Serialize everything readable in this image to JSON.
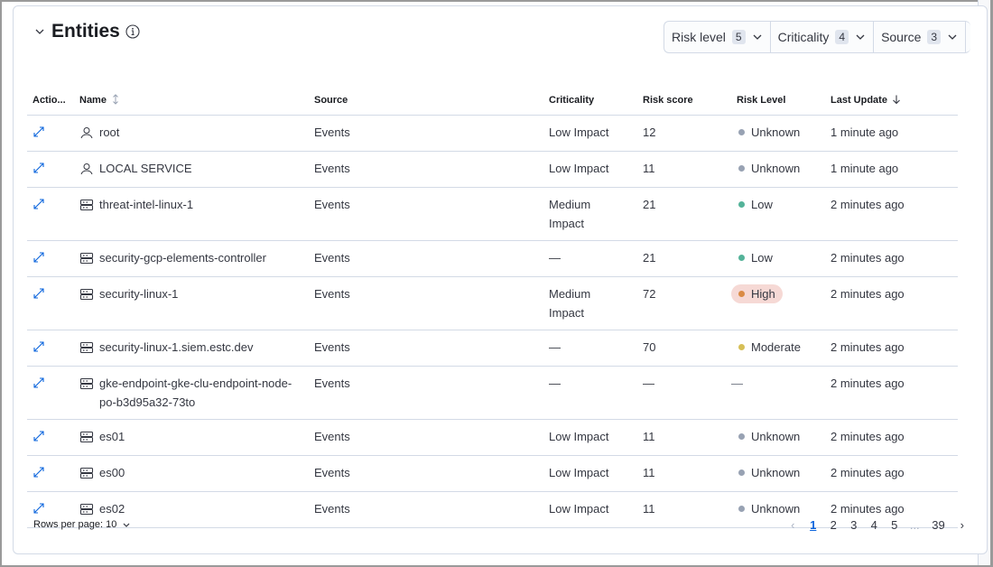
{
  "panel": {
    "title": "Entities"
  },
  "filters": [
    {
      "label": "Risk level",
      "count": "5"
    },
    {
      "label": "Criticality",
      "count": "4"
    },
    {
      "label": "Source",
      "count": "3"
    }
  ],
  "columns": [
    "Actio...",
    "Name",
    "Source",
    "Criticality",
    "Risk score",
    "Risk Level",
    "Last Update"
  ],
  "rows": [
    {
      "icon": "user",
      "name": "root",
      "source": "Events",
      "criticality": "Low Impact",
      "score": "12",
      "level": "Unknown",
      "updated": "1 minute ago"
    },
    {
      "icon": "user",
      "name": "LOCAL SERVICE",
      "source": "Events",
      "criticality": "Low Impact",
      "score": "11",
      "level": "Unknown",
      "updated": "1 minute ago"
    },
    {
      "icon": "host",
      "name": "threat-intel-linux-1",
      "source": "Events",
      "criticality": "Medium Impact",
      "score": "21",
      "level": "Low",
      "updated": "2 minutes ago"
    },
    {
      "icon": "host",
      "name": "security-gcp-elements-controller",
      "source": "Events",
      "criticality": "—",
      "score": "21",
      "level": "Low",
      "updated": "2 minutes ago"
    },
    {
      "icon": "host",
      "name": "security-linux-1",
      "source": "Events",
      "criticality": "Medium Impact",
      "score": "72",
      "level": "High",
      "updated": "2 minutes ago"
    },
    {
      "icon": "host",
      "name": "security-linux-1.siem.estc.dev",
      "source": "Events",
      "criticality": "—",
      "score": "70",
      "level": "Moderate",
      "updated": "2 minutes ago"
    },
    {
      "icon": "host",
      "name": "gke-endpoint-gke-clu-endpoint-node-po-b3d95a32-73to",
      "source": "Events",
      "criticality": "—",
      "score": "—",
      "level": "—",
      "updated": "2 minutes ago"
    },
    {
      "icon": "host",
      "name": "es01",
      "source": "Events",
      "criticality": "Low Impact",
      "score": "11",
      "level": "Unknown",
      "updated": "2 minutes ago"
    },
    {
      "icon": "host",
      "name": "es00",
      "source": "Events",
      "criticality": "Low Impact",
      "score": "11",
      "level": "Unknown",
      "updated": "2 minutes ago"
    },
    {
      "icon": "host",
      "name": "es02",
      "source": "Events",
      "criticality": "Low Impact",
      "score": "11",
      "level": "Unknown",
      "updated": "2 minutes ago"
    }
  ],
  "level_colors": {
    "Unknown": "#98a2b3",
    "Low": "#54b399",
    "Moderate": "#d6bf57",
    "High": "#da8b45",
    "High_bg": "#f6d9d5"
  },
  "footer": {
    "rows_per_page": "Rows per page: 10"
  },
  "pagination": {
    "pages": [
      "1",
      "2",
      "3",
      "4",
      "5",
      "...",
      "39"
    ],
    "current": "1"
  }
}
